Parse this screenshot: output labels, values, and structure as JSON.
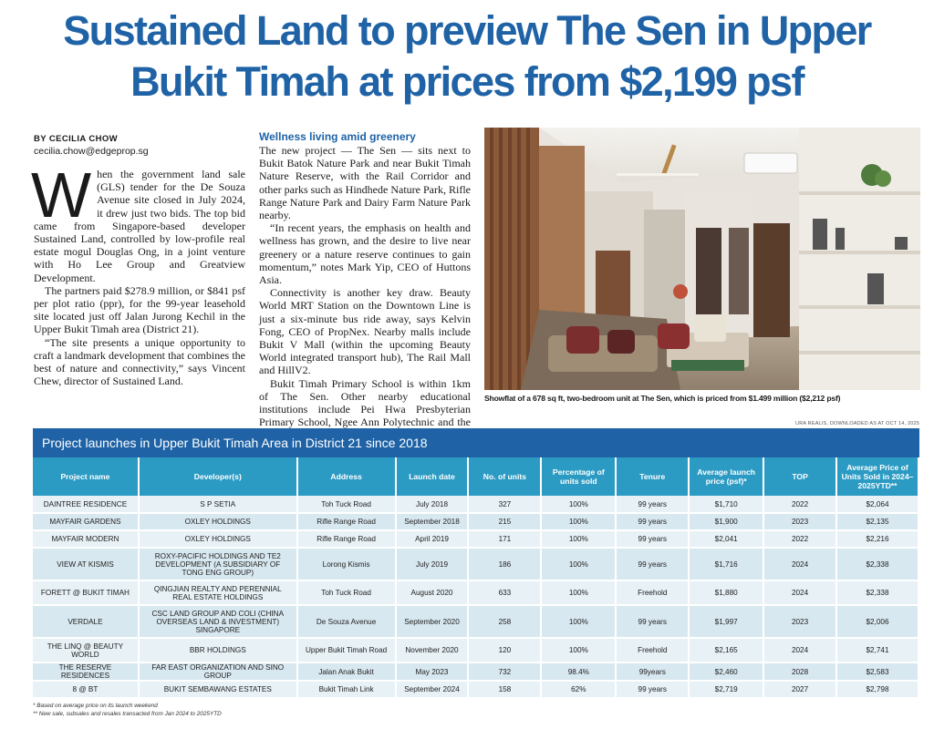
{
  "headline": {
    "line1": "Sustained Land to preview The Sen in Upper",
    "line2": "Bukit Timah at prices from $2,199 psf"
  },
  "byline": {
    "author": "BY CECILIA CHOW",
    "email": "cecilia.chow@edgeprop.sg"
  },
  "column1": {
    "dropcap": "W",
    "p1": "hen the government land sale (GLS) tender for the De Souza Avenue site closed in July 2024, it drew just two bids. The top bid came from Singapore-based developer Sustained Land, controlled by low-profile real estate mogul Douglas Ong, in a joint venture with Ho Lee Group and Greatview Development.",
    "p2": "The partners paid $278.9 million, or $841 psf per plot ratio (ppr), for the 99-year leasehold site located just off Jalan Jurong Kechil in the Upper Bukit Timah area (District 21).",
    "p3": "“The site presents a unique opportunity to craft a landmark development that combines the best of nature and connectivity,” says Vincent Chew, director of Sustained Land."
  },
  "column2": {
    "subhead": "Wellness living amid greenery",
    "p1": "The new project — The Sen — sits next to Bukit Batok Nature Park and near Bukit Timah Nature Reserve, with the Rail Corridor and other parks such as Hindhede Nature Park, Rifle Range Nature Park and Dairy Farm Nature Park nearby.",
    "p2": "“In recent years, the emphasis on health and wellness has grown, and the desire to live near greenery or a nature reserve continues to gain momentum,” notes Mark Yip, CEO of Huttons Asia.",
    "p3": "Connectivity is another key draw. Beauty World MRT Station on the Downtown Line is just a six-minute bus ride away, says Kelvin Fong, CEO of PropNex. Nearby malls include Bukit V Mall (within the upcoming Beauty World integrated transport hub), The Rail Mall and HillV2.",
    "p4": "Bukit Timah Primary School is within 1km of The Sen. Other nearby educational institutions include Pei Hwa Presbyterian Primary School, Ngee Ann Polytechnic and the Singapore University of"
  },
  "photo": {
    "caption": "Showflat of a 678 sq ft, two-bedroom unit at The Sen, which is priced from $1.499 million ($2,212 psf)"
  },
  "table": {
    "source": "URA REALIS, DOWNLOADED AS AT OCT 14, 2025",
    "title": "Project launches in Upper Bukit Timah Area in District 21 since 2018",
    "headers": [
      "Project name",
      "Developer(s)",
      "Address",
      "Launch date",
      "No. of units",
      "Percentage of units sold",
      "Tenure",
      "Average launch price (psf)*",
      "TOP",
      "Average Price of Units Sold in 2024–2025YTD**"
    ],
    "rows": [
      [
        "DAINTREE RESIDENCE",
        "S P SETIA",
        "Toh Tuck Road",
        "July 2018",
        "327",
        "100%",
        "99 years",
        "$1,710",
        "2022",
        "$2,064"
      ],
      [
        "MAYFAIR GARDENS",
        "OXLEY HOLDINGS",
        "Rifle Range Road",
        "September 2018",
        "215",
        "100%",
        "99 years",
        "$1,900",
        "2023",
        "$2,135"
      ],
      [
        "MAYFAIR MODERN",
        "OXLEY HOLDINGS",
        "Rifle Range Road",
        "April 2019",
        "171",
        "100%",
        "99 years",
        "$2,041",
        "2022",
        "$2,216"
      ],
      [
        "VIEW AT KISMIS",
        "ROXY-PACIFIC HOLDINGS AND TE2 DEVELOPMENT (A SUBSIDIARY OF TONG ENG GROUP)",
        "Lorong Kismis",
        "July 2019",
        "186",
        "100%",
        "99 years",
        "$1,716",
        "2024",
        "$2,338"
      ],
      [
        "FORETT @ BUKIT TIMAH",
        "QINGJIAN REALTY AND PERENNIAL REAL ESTATE HOLDINGS",
        "Toh Tuck Road",
        "August 2020",
        "633",
        "100%",
        "Freehold",
        "$1,880",
        "2024",
        "$2,338"
      ],
      [
        "VERDALE",
        "CSC LAND GROUP AND COLI (CHINA OVERSEAS LAND & INVESTMENT) SINGAPORE",
        "De Souza Avenue",
        "September 2020",
        "258",
        "100%",
        "99 years",
        "$1,997",
        "2023",
        "$2,006"
      ],
      [
        "THE LINQ @ BEAUTY WORLD",
        "BBR HOLDINGS",
        "Upper Bukit Timah Road",
        "November 2020",
        "120",
        "100%",
        "Freehold",
        "$2,165",
        "2024",
        "$2,741"
      ],
      [
        "THE RESERVE RESIDENCES",
        "FAR EAST ORGANIZATION AND SINO GROUP",
        "Jalan Anak Bukit",
        "May 2023",
        "732",
        "98.4%",
        "99years",
        "$2,460",
        "2028",
        "$2,583"
      ],
      [
        "8 @ BT",
        "BUKIT SEMBAWANG ESTATES",
        "Bukit Timah Link",
        "September 2024",
        "158",
        "62%",
        "99 years",
        "$2,719",
        "2027",
        "$2,798"
      ]
    ],
    "note1": "* Based on average price on its launch weekend",
    "note2": "** New sale, subsales and resales transacted from Jan 2024 to 2025YTD"
  }
}
